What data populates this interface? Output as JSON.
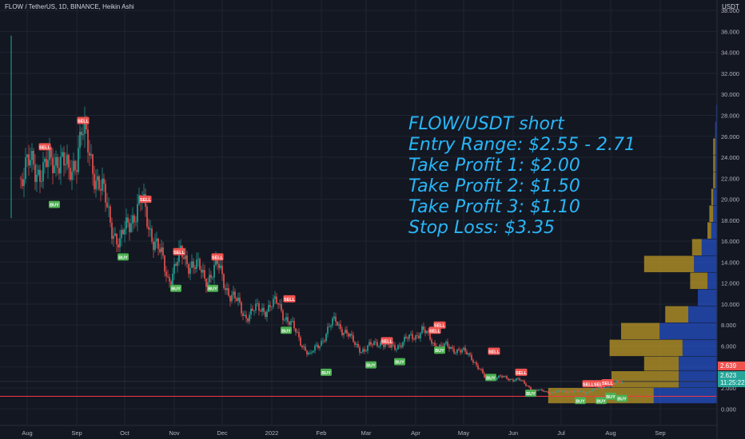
{
  "header": {
    "symbol": "FLOW / TetherUS, 1D, BINANCE, Heikin Ashi",
    "currency": "USDT"
  },
  "annotation": {
    "lines": [
      "FLOW/USDT short",
      "Entry Range: $2.55 - 2.71",
      "Take Profit 1: $2.00",
      "Take Profit 2: $1.50",
      "Take Profit 3: $1.10",
      "Stop Loss: $3.35"
    ],
    "color": "#29b6f6"
  },
  "price_tags": {
    "upper": "2.639",
    "last": "2.623",
    "countdown": "11:25:22"
  },
  "colors": {
    "up": "#26a69a",
    "down": "#ef5350",
    "background": "#131722",
    "grid": "#1f2430",
    "buy_badge": "#4caf50",
    "sell_badge": "#ef5350",
    "stop_line": "#f23645",
    "vp_blue": "#2962ff",
    "vp_gold": "#c9a227"
  },
  "chart_data": {
    "type": "candlestick",
    "title": "FLOW / TetherUS, 1D, BINANCE, Heikin Ashi",
    "y_axis_ticks": [
      "0.000",
      "2.000",
      "4.000",
      "6.000",
      "8.000",
      "10.000",
      "12.000",
      "14.000",
      "16.000",
      "18.000",
      "20.000",
      "22.000",
      "24.000",
      "26.000",
      "28.000",
      "30.000",
      "32.000",
      "34.000",
      "36.000",
      "38.000"
    ],
    "x_axis_ticks": [
      "Aug",
      "Sep",
      "Oct",
      "Nov",
      "Dec",
      "2022",
      "Feb",
      "Mar",
      "Apr",
      "May",
      "Jun",
      "Jul",
      "Aug",
      "Sep"
    ],
    "ylim": [
      -1.5,
      39
    ],
    "price_path": [
      {
        "date": "2021-07-28",
        "price": 22.0
      },
      {
        "date": "2021-08-05",
        "price": 23.5
      },
      {
        "date": "2021-08-12",
        "price": 22.5
      },
      {
        "date": "2021-08-20",
        "price": 24.5
      },
      {
        "date": "2021-08-27",
        "price": 22.0
      },
      {
        "date": "2021-09-04",
        "price": 26.3
      },
      {
        "date": "2021-09-12",
        "price": 23.0
      },
      {
        "date": "2021-09-20",
        "price": 19.0
      },
      {
        "date": "2021-09-28",
        "price": 15.5
      },
      {
        "date": "2021-10-05",
        "price": 18.5
      },
      {
        "date": "2021-10-12",
        "price": 19.5
      },
      {
        "date": "2021-10-20",
        "price": 16.0
      },
      {
        "date": "2021-10-28",
        "price": 12.5
      },
      {
        "date": "2021-11-05",
        "price": 14.5
      },
      {
        "date": "2021-11-12",
        "price": 14.0
      },
      {
        "date": "2021-11-20",
        "price": 12.5
      },
      {
        "date": "2021-11-28",
        "price": 13.5
      },
      {
        "date": "2021-12-06",
        "price": 11.0
      },
      {
        "date": "2021-12-15",
        "price": 9.0
      },
      {
        "date": "2021-12-25",
        "price": 9.5
      },
      {
        "date": "2022-01-05",
        "price": 10.0
      },
      {
        "date": "2022-01-15",
        "price": 7.5
      },
      {
        "date": "2022-01-25",
        "price": 5.0
      },
      {
        "date": "2022-02-03",
        "price": 7.0
      },
      {
        "date": "2022-02-10",
        "price": 8.5
      },
      {
        "date": "2022-02-20",
        "price": 6.5
      },
      {
        "date": "2022-02-28",
        "price": 5.5
      },
      {
        "date": "2022-03-08",
        "price": 6.5
      },
      {
        "date": "2022-03-16",
        "price": 5.8
      },
      {
        "date": "2022-03-26",
        "price": 6.5
      },
      {
        "date": "2022-04-05",
        "price": 7.5
      },
      {
        "date": "2022-04-14",
        "price": 6.0
      },
      {
        "date": "2022-04-25",
        "price": 5.8
      },
      {
        "date": "2022-05-06",
        "price": 5.0
      },
      {
        "date": "2022-05-14",
        "price": 3.0
      },
      {
        "date": "2022-05-24",
        "price": 3.0
      },
      {
        "date": "2022-06-04",
        "price": 2.8
      },
      {
        "date": "2022-06-14",
        "price": 1.8
      },
      {
        "date": "2022-06-24",
        "price": 1.6
      },
      {
        "date": "2022-07-06",
        "price": 1.7
      },
      {
        "date": "2022-07-16",
        "price": 1.6
      },
      {
        "date": "2022-07-26",
        "price": 2.0
      },
      {
        "date": "2022-08-03",
        "price": 2.4
      },
      {
        "date": "2022-08-08",
        "price": 2.62
      }
    ],
    "initial_spike_high": 35.6,
    "last_price": 2.623,
    "buy_signals": [
      {
        "date": "2021-08-18",
        "price": 19.5
      },
      {
        "date": "2021-09-30",
        "price": 14.5
      },
      {
        "date": "2021-11-02",
        "price": 11.5
      },
      {
        "date": "2021-11-25",
        "price": 11.5
      },
      {
        "date": "2022-01-10",
        "price": 7.5
      },
      {
        "date": "2022-02-04",
        "price": 3.5
      },
      {
        "date": "2022-03-04",
        "price": 4.2
      },
      {
        "date": "2022-03-22",
        "price": 4.5
      },
      {
        "date": "2022-04-16",
        "price": 5.6
      },
      {
        "date": "2022-05-18",
        "price": 3.0
      },
      {
        "date": "2022-06-12",
        "price": 1.5
      },
      {
        "date": "2022-07-13",
        "price": 0.8
      },
      {
        "date": "2022-07-26",
        "price": 0.8
      },
      {
        "date": "2022-08-01",
        "price": 1.2
      },
      {
        "date": "2022-08-08",
        "price": 1.0
      }
    ],
    "sell_signals": [
      {
        "date": "2021-08-12",
        "price": 25.0
      },
      {
        "date": "2021-09-05",
        "price": 27.5
      },
      {
        "date": "2021-10-14",
        "price": 20.0
      },
      {
        "date": "2021-11-04",
        "price": 15.0
      },
      {
        "date": "2021-11-28",
        "price": 14.5
      },
      {
        "date": "2022-01-12",
        "price": 10.5
      },
      {
        "date": "2022-03-14",
        "price": 6.5
      },
      {
        "date": "2022-04-13",
        "price": 7.5
      },
      {
        "date": "2022-04-16",
        "price": 8.0
      },
      {
        "date": "2022-05-20",
        "price": 5.5
      },
      {
        "date": "2022-06-06",
        "price": 3.5
      },
      {
        "date": "2022-07-18",
        "price": 2.4
      },
      {
        "date": "2022-07-25",
        "price": 2.4
      },
      {
        "date": "2022-07-30",
        "price": 2.5
      }
    ],
    "horizontal_lines": [
      {
        "price": 1.2,
        "color": "#f23645"
      },
      {
        "price": 2.62,
        "color": "#2a2e39"
      }
    ],
    "volume_profile": [
      {
        "price_low": 0.5,
        "price_high": 2.0,
        "blue": 0.33,
        "gold": 0.55
      },
      {
        "price_low": 2.0,
        "price_high": 3.6,
        "blue": 0.2,
        "gold": 0.35
      },
      {
        "price_low": 3.6,
        "price_high": 5.0,
        "blue": 0.2,
        "gold": 0.18
      },
      {
        "price_low": 5.0,
        "price_high": 6.6,
        "blue": 0.18,
        "gold": 0.38
      },
      {
        "price_low": 6.6,
        "price_high": 8.2,
        "blue": 0.3,
        "gold": 0.2
      },
      {
        "price_low": 8.2,
        "price_high": 9.8,
        "blue": 0.15,
        "gold": 0.12
      },
      {
        "price_low": 9.8,
        "price_high": 11.4,
        "blue": 0.1,
        "gold": 0.0
      },
      {
        "price_low": 11.4,
        "price_high": 13.0,
        "blue": 0.05,
        "gold": 0.09
      },
      {
        "price_low": 13.0,
        "price_high": 14.6,
        "blue": 0.12,
        "gold": 0.26
      },
      {
        "price_low": 14.6,
        "price_high": 16.2,
        "blue": 0.08,
        "gold": 0.05
      },
      {
        "price_low": 16.2,
        "price_high": 17.8,
        "blue": 0.03,
        "gold": 0.02
      },
      {
        "price_low": 17.8,
        "price_high": 19.4,
        "blue": 0.02,
        "gold": 0.02
      },
      {
        "price_low": 19.4,
        "price_high": 21.0,
        "blue": 0.02,
        "gold": 0.01
      },
      {
        "price_low": 21.0,
        "price_high": 22.6,
        "blue": 0.01,
        "gold": 0.01
      },
      {
        "price_low": 22.6,
        "price_high": 24.2,
        "blue": 0.01,
        "gold": 0.01
      },
      {
        "price_low": 24.2,
        "price_high": 25.8,
        "blue": 0.01,
        "gold": 0.01
      },
      {
        "price_low": 25.8,
        "price_high": 27.4,
        "blue": 0.01,
        "gold": 0.0
      },
      {
        "price_low": 27.4,
        "price_high": 29.0,
        "blue": 0.005,
        "gold": 0.0
      }
    ],
    "signal_labels": {
      "buy": "BUY",
      "sell": "SELL"
    }
  }
}
